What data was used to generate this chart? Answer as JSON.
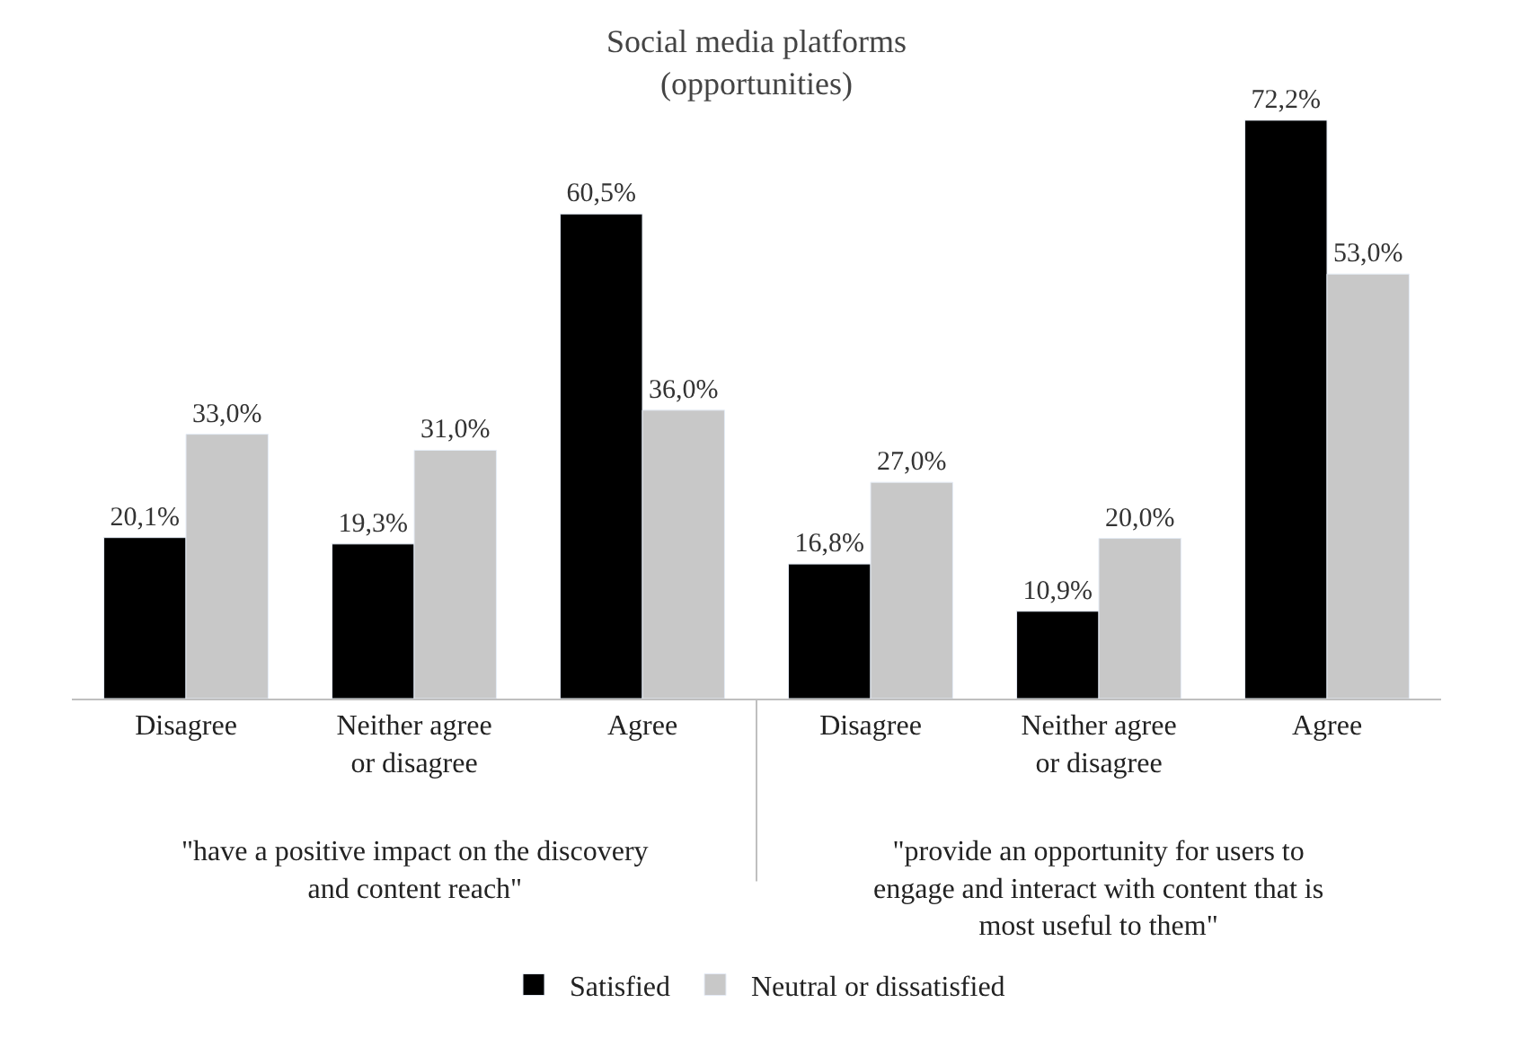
{
  "chart_data": {
    "type": "bar",
    "title": "Social media platforms\n(opportunities)",
    "categories": [
      "Disagree",
      "Neither agree or disagree",
      "Agree",
      "Disagree",
      "Neither agree or disagree",
      "Agree"
    ],
    "series": [
      {
        "name": "Satisfied",
        "color": "#000000",
        "values": [
          20.1,
          19.3,
          60.5,
          16.8,
          10.9,
          72.2
        ],
        "value_labels": [
          "20,1%",
          "19,3%",
          "60,5%",
          "16,8%",
          "10,9%",
          "72,2%"
        ]
      },
      {
        "name": "Neutral or dissatisfied",
        "color": "#c8c8c8",
        "values": [
          33.0,
          31.0,
          36.0,
          27.0,
          20.0,
          53.0
        ],
        "value_labels": [
          "33,0%",
          "31,0%",
          "36,0%",
          "27,0%",
          "20,0%",
          "53,0%"
        ]
      }
    ],
    "annotations": [
      "\"have a positive impact on the discovery and content reach\"",
      "\"provide an opportunity for users to engage and interact with content that is most useful to them\""
    ],
    "legend": "bottom"
  }
}
